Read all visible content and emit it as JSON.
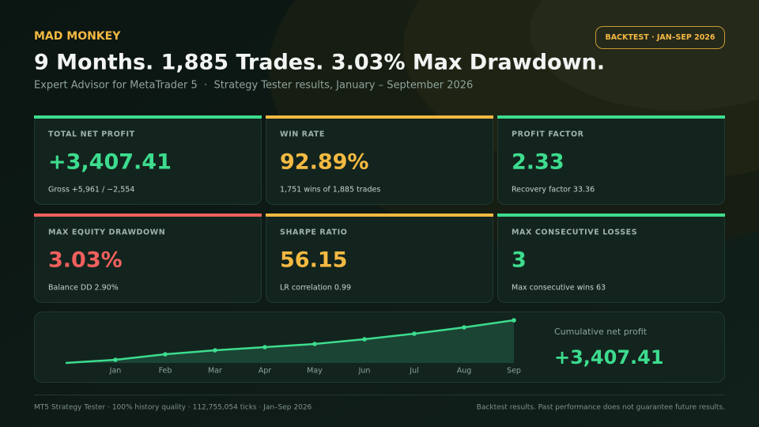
{
  "header": {
    "brand": "MAD MONKEY",
    "badge": "BACKTEST · JAN–SEP 2026",
    "title": "9 Months. 1,885 Trades. 3.03% Max Drawdown.",
    "subtitle": "Expert Advisor for MetaTrader 5  ·  Strategy Tester results, January – September 2026"
  },
  "cards": [
    {
      "label": "TOTAL NET PROFIT",
      "value": "+3,407.41",
      "note": "Gross +5,961 / −2,554",
      "color": "#3ddc8e"
    },
    {
      "label": "WIN RATE",
      "value": "92.89%",
      "note": "1,751 wins of 1,885 trades",
      "color": "#f4b942"
    },
    {
      "label": "PROFIT FACTOR",
      "value": "2.33",
      "note": "Recovery factor 33.36",
      "color": "#3ddc8e"
    },
    {
      "label": "MAX EQUITY DRAWDOWN",
      "value": "3.03%",
      "note": "Balance DD 2.90%",
      "color": "#f0605d"
    },
    {
      "label": "SHARPE RATIO",
      "value": "56.15",
      "note": "LR correlation 0.99",
      "color": "#f4b942"
    },
    {
      "label": "MAX CONSECUTIVE LOSSES",
      "value": "3",
      "note": "Max consecutive wins 63",
      "color": "#3ddc8e"
    }
  ],
  "chart_data": {
    "type": "line",
    "title": "Cumulative net profit",
    "total": "+3,407.41",
    "color": "#3ddc8e",
    "categories": [
      null,
      "Jan",
      "Feb",
      "Mar",
      "Apr",
      "May",
      "Jun",
      "Jul",
      "Aug",
      "Sep"
    ],
    "values": [
      0,
      252,
      694,
      1010,
      1262,
      1514,
      1893,
      2335,
      2839,
      3407.41
    ],
    "ylim": [
      0,
      3407.41
    ]
  },
  "footer": {
    "left": "MT5 Strategy Tester · 100% history quality · 112,755,054 ticks · Jan–Sep 2026",
    "right": "Backtest results. Past performance does not guarantee future results."
  }
}
